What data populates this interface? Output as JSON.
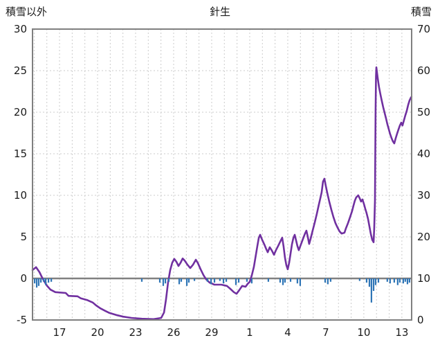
{
  "header": {
    "left_axis_title": "積雪以外",
    "chart_title": "針生",
    "right_axis_title": "積雪"
  },
  "colors": {
    "line": "#7030A0",
    "bars": "#2E75B6",
    "grid": "#CBCBCB",
    "zero_line": "#808080",
    "border": "#7F7F7F",
    "text": "#1A1A1A"
  },
  "chart_data": {
    "type": "line",
    "title": "針生",
    "x_domain": [
      14.87,
      44.77
    ],
    "x_ticks": [
      {
        "pos": 17,
        "label": "17"
      },
      {
        "pos": 20,
        "label": "20"
      },
      {
        "pos": 23,
        "label": "23"
      },
      {
        "pos": 26,
        "label": "26"
      },
      {
        "pos": 29,
        "label": "29"
      },
      {
        "pos": 32,
        "label": "1"
      },
      {
        "pos": 35,
        "label": "4"
      },
      {
        "pos": 38,
        "label": "7"
      },
      {
        "pos": 41,
        "label": "10"
      },
      {
        "pos": 44,
        "label": "13"
      }
    ],
    "left_axis": {
      "title": "積雪以外",
      "range": [
        -5,
        30
      ],
      "tick_step": 5,
      "tick_labels": [
        "-5",
        "0",
        "5",
        "10",
        "15",
        "20",
        "25",
        "30"
      ]
    },
    "right_axis": {
      "title": "積雪",
      "range": [
        0,
        70
      ],
      "tick_step": 10,
      "tick_labels": [
        "0",
        "10",
        "20",
        "30",
        "40",
        "50",
        "60",
        "70"
      ]
    },
    "grid": {
      "vertical_per_day": true,
      "horizontal_step_left": 5,
      "style": "dashed"
    },
    "series": [
      {
        "name": "積雪",
        "type": "line",
        "axis": "right",
        "color": "#7030A0",
        "points": [
          [
            14.87,
            12
          ],
          [
            15.15,
            12.7
          ],
          [
            15.42,
            11.5
          ],
          [
            15.58,
            10.5
          ],
          [
            15.8,
            9.3
          ],
          [
            16.02,
            8.2
          ],
          [
            16.29,
            7.3
          ],
          [
            16.67,
            6.7
          ],
          [
            17.49,
            6.5
          ],
          [
            17.71,
            5.8
          ],
          [
            18.42,
            5.7
          ],
          [
            18.69,
            5.2
          ],
          [
            19.18,
            4.8
          ],
          [
            19.62,
            4.2
          ],
          [
            19.89,
            3.5
          ],
          [
            20.22,
            2.8
          ],
          [
            20.6,
            2.2
          ],
          [
            20.93,
            1.7
          ],
          [
            21.47,
            1.2
          ],
          [
            22.02,
            0.8
          ],
          [
            22.67,
            0.5
          ],
          [
            23.49,
            0.3
          ],
          [
            24.42,
            0.2
          ],
          [
            25.02,
            0.5
          ],
          [
            25.24,
            1.8
          ],
          [
            25.4,
            5
          ],
          [
            25.56,
            9
          ],
          [
            25.73,
            12
          ],
          [
            25.89,
            13.8
          ],
          [
            26.05,
            14.7
          ],
          [
            26.22,
            14
          ],
          [
            26.38,
            13
          ],
          [
            26.55,
            13.8
          ],
          [
            26.71,
            14.8
          ],
          [
            26.87,
            14.3
          ],
          [
            27.09,
            13.3
          ],
          [
            27.31,
            12.5
          ],
          [
            27.53,
            13.3
          ],
          [
            27.75,
            14.5
          ],
          [
            27.91,
            13.7
          ],
          [
            28.13,
            12.2
          ],
          [
            28.35,
            10.8
          ],
          [
            28.56,
            9.8
          ],
          [
            28.84,
            9
          ],
          [
            29.22,
            8.5
          ],
          [
            29.76,
            8.5
          ],
          [
            30.2,
            8.2
          ],
          [
            30.47,
            7.5
          ],
          [
            30.75,
            6.7
          ],
          [
            30.96,
            6.3
          ],
          [
            31.18,
            7.2
          ],
          [
            31.4,
            8.2
          ],
          [
            31.67,
            8
          ],
          [
            31.84,
            8.7
          ],
          [
            32,
            9.2
          ],
          [
            32.16,
            10.7
          ],
          [
            32.33,
            12.8
          ],
          [
            32.49,
            15.7
          ],
          [
            32.6,
            17.8
          ],
          [
            32.71,
            19.7
          ],
          [
            32.82,
            20.5
          ],
          [
            32.98,
            19.3
          ],
          [
            33.15,
            18.2
          ],
          [
            33.31,
            17
          ],
          [
            33.42,
            16.3
          ],
          [
            33.58,
            17.5
          ],
          [
            33.75,
            16.7
          ],
          [
            33.91,
            15.7
          ],
          [
            34.07,
            16.8
          ],
          [
            34.24,
            17.8
          ],
          [
            34.4,
            18.8
          ],
          [
            34.56,
            19.8
          ],
          [
            34.67,
            17.7
          ],
          [
            34.78,
            15
          ],
          [
            34.89,
            13.2
          ],
          [
            35,
            12.2
          ],
          [
            35.11,
            13.8
          ],
          [
            35.22,
            16
          ],
          [
            35.33,
            18.2
          ],
          [
            35.44,
            19.7
          ],
          [
            35.55,
            20.5
          ],
          [
            35.65,
            19.2
          ],
          [
            35.76,
            17.8
          ],
          [
            35.87,
            16.8
          ],
          [
            36.04,
            18.2
          ],
          [
            36.2,
            19.5
          ],
          [
            36.36,
            20.8
          ],
          [
            36.47,
            21.5
          ],
          [
            36.58,
            20
          ],
          [
            36.69,
            18.3
          ],
          [
            36.8,
            19.5
          ],
          [
            36.96,
            21.5
          ],
          [
            37.13,
            23.5
          ],
          [
            37.29,
            25.5
          ],
          [
            37.45,
            27.7
          ],
          [
            37.56,
            29.2
          ],
          [
            37.67,
            30.7
          ],
          [
            37.78,
            33.3
          ],
          [
            37.89,
            34
          ],
          [
            38,
            32.3
          ],
          [
            38.11,
            30.7
          ],
          [
            38.27,
            28.5
          ],
          [
            38.44,
            26.5
          ],
          [
            38.6,
            24.8
          ],
          [
            38.76,
            23.3
          ],
          [
            38.93,
            22.2
          ],
          [
            39.09,
            21.3
          ],
          [
            39.25,
            20.8
          ],
          [
            39.47,
            21
          ],
          [
            39.58,
            22
          ],
          [
            39.75,
            23.3
          ],
          [
            39.91,
            24.7
          ],
          [
            40.07,
            26.2
          ],
          [
            40.18,
            27.5
          ],
          [
            40.29,
            28.7
          ],
          [
            40.4,
            29.5
          ],
          [
            40.56,
            30
          ],
          [
            40.67,
            29.3
          ],
          [
            40.78,
            28.5
          ],
          [
            40.89,
            29
          ],
          [
            41,
            28
          ],
          [
            41.11,
            26.8
          ],
          [
            41.22,
            25.7
          ],
          [
            41.33,
            24.3
          ],
          [
            41.44,
            22.5
          ],
          [
            41.55,
            20.7
          ],
          [
            41.66,
            19.3
          ],
          [
            41.77,
            18.7
          ],
          [
            41.82,
            22
          ],
          [
            41.88,
            28.7
          ],
          [
            41.9,
            38.7
          ],
          [
            41.93,
            50.3
          ],
          [
            41.96,
            58.7
          ],
          [
            41.99,
            60.8
          ],
          [
            42.04,
            59.5
          ],
          [
            42.09,
            58.3
          ],
          [
            42.15,
            57
          ],
          [
            42.2,
            56
          ],
          [
            42.31,
            54.3
          ],
          [
            42.42,
            52.7
          ],
          [
            42.53,
            51.2
          ],
          [
            42.64,
            49.8
          ],
          [
            42.75,
            48.5
          ],
          [
            42.85,
            47.2
          ],
          [
            42.96,
            46
          ],
          [
            43.07,
            44.8
          ],
          [
            43.18,
            43.8
          ],
          [
            43.29,
            43
          ],
          [
            43.4,
            42.5
          ],
          [
            43.51,
            43.7
          ],
          [
            43.62,
            44.8
          ],
          [
            43.73,
            45.8
          ],
          [
            43.84,
            46.8
          ],
          [
            43.95,
            47.5
          ],
          [
            44.05,
            46.8
          ],
          [
            44.16,
            48
          ],
          [
            44.27,
            49.2
          ],
          [
            44.38,
            50.3
          ],
          [
            44.49,
            51.7
          ],
          [
            44.6,
            52.8
          ],
          [
            44.71,
            53.5
          ],
          [
            44.76,
            53.7
          ]
        ]
      },
      {
        "name": "積雪以外",
        "type": "bar-down",
        "axis": "left",
        "color": "#2E75B6",
        "points": [
          [
            15.04,
            0.6
          ],
          [
            15.2,
            1.1
          ],
          [
            15.36,
            0.9
          ],
          [
            15.53,
            0.5
          ],
          [
            15.75,
            0.4
          ],
          [
            15.91,
            0.8
          ],
          [
            16.13,
            0.5
          ],
          [
            16.35,
            0.4
          ],
          [
            23.49,
            0.4
          ],
          [
            24.91,
            0.5
          ],
          [
            25.18,
            0.9
          ],
          [
            25.35,
            0.6
          ],
          [
            25.62,
            0.4
          ],
          [
            26.44,
            0.7
          ],
          [
            26.6,
            0.4
          ],
          [
            27.04,
            0.9
          ],
          [
            27.2,
            0.5
          ],
          [
            27.64,
            0.3
          ],
          [
            28.67,
            0.4
          ],
          [
            28.95,
            0.7
          ],
          [
            29.22,
            0.5
          ],
          [
            29.65,
            0.3
          ],
          [
            29.93,
            0.6
          ],
          [
            30.15,
            0.4
          ],
          [
            30.91,
            0.8
          ],
          [
            31.13,
            0.5
          ],
          [
            31.78,
            0.4
          ],
          [
            32.16,
            0.6
          ],
          [
            33.47,
            0.4
          ],
          [
            34.4,
            0.5
          ],
          [
            34.62,
            0.8
          ],
          [
            34.78,
            0.5
          ],
          [
            35.22,
            0.4
          ],
          [
            35.76,
            0.6
          ],
          [
            35.98,
            0.9
          ],
          [
            37.95,
            0.5
          ],
          [
            38.16,
            0.7
          ],
          [
            38.38,
            0.4
          ],
          [
            40.67,
            0.3
          ],
          [
            41.22,
            0.5
          ],
          [
            41.44,
            1.0
          ],
          [
            41.6,
            2.9
          ],
          [
            41.77,
            1.5
          ],
          [
            41.93,
            0.8
          ],
          [
            42.15,
            0.5
          ],
          [
            42.85,
            0.4
          ],
          [
            43.07,
            0.6
          ],
          [
            43.4,
            0.5
          ],
          [
            43.67,
            0.8
          ],
          [
            43.84,
            0.5
          ],
          [
            44.11,
            0.6
          ],
          [
            44.27,
            0.4
          ],
          [
            44.44,
            0.7
          ],
          [
            44.6,
            0.5
          ]
        ]
      }
    ]
  }
}
